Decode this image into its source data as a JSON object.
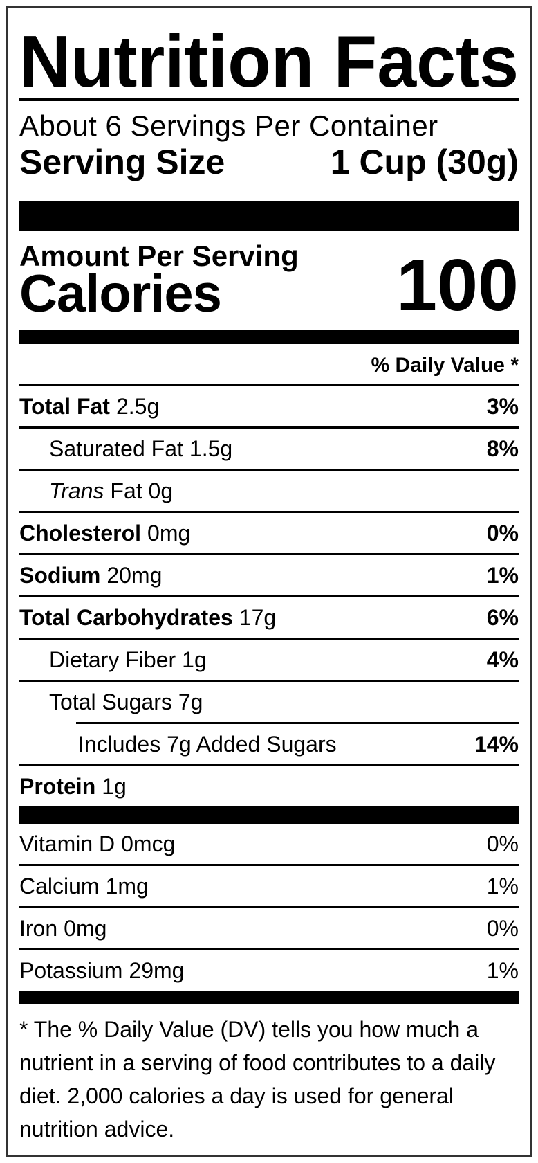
{
  "colors": {
    "text": "#000000",
    "border": "#333333",
    "bar": "#000000",
    "background": "#ffffff"
  },
  "header": {
    "title": "Nutrition Facts",
    "servings_per_container": "About 6 Servings Per Container",
    "serving_size_label": "Serving Size",
    "serving_size_value": "1 Cup (30g)"
  },
  "calories": {
    "amount_per_serving_label": "Amount Per Serving",
    "label": "Calories",
    "value": "100"
  },
  "daily_value_header": "% Daily Value *",
  "nutrients": [
    {
      "name": "Total Fat",
      "amount": "2.5g",
      "dv": "3%"
    },
    {
      "name": "Saturated Fat",
      "amount": "1.5g",
      "dv": "8%"
    },
    {
      "name": "Trans",
      "amount": "Fat 0g",
      "dv": ""
    },
    {
      "name": "Cholesterol",
      "amount": "0mg",
      "dv": "0%"
    },
    {
      "name": "Sodium",
      "amount": "20mg",
      "dv": "1%"
    },
    {
      "name": "Total Carbohydrates",
      "amount": "17g",
      "dv": "6%"
    },
    {
      "name": "Dietary Fiber",
      "amount": "1g",
      "dv": "4%"
    },
    {
      "name": "Total Sugars",
      "amount": "7g",
      "dv": ""
    },
    {
      "name": "Includes 7g Added Sugars",
      "amount": "",
      "dv": "14%"
    },
    {
      "name": "Protein",
      "amount": "1g",
      "dv": ""
    }
  ],
  "vitamins": [
    {
      "name": "Vitamin D",
      "amount": "0mcg",
      "dv": "0%"
    },
    {
      "name": "Calcium",
      "amount": "1mg",
      "dv": "1%"
    },
    {
      "name": "Iron",
      "amount": "0mg",
      "dv": "0%"
    },
    {
      "name": "Potassium",
      "amount": "29mg",
      "dv": "1%"
    }
  ],
  "footnote": {
    "lines": [
      "* The % Daily Value (DV) tells you how much a",
      "nutrient in a serving of food contributes to a daily",
      "diet. 2,000 calories a day is used for general",
      "nutrition advice."
    ]
  }
}
